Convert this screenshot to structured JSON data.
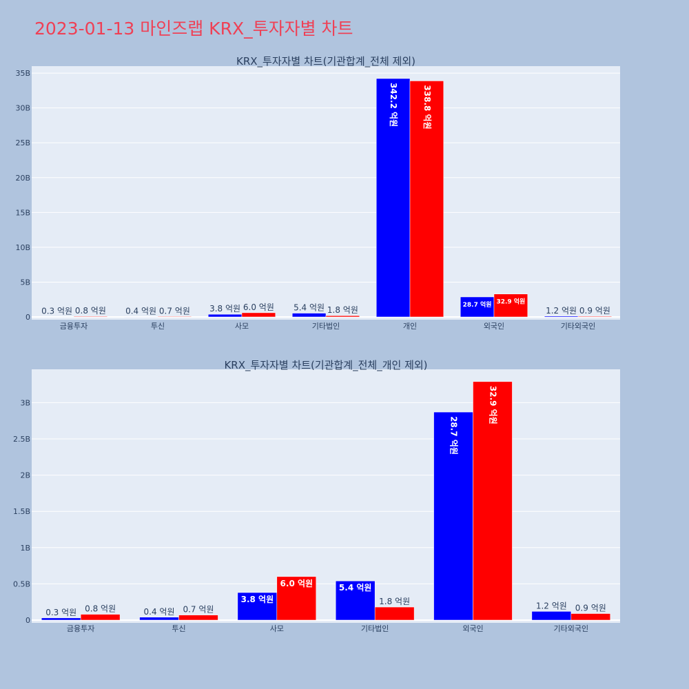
{
  "page": {
    "title": "2023-01-13 마인즈랩 KRX_투자자별 차트"
  },
  "colors": {
    "background": "#b0c4de",
    "plot_bg": "#e5ecf6",
    "title": "#ef4055",
    "buy": "#0000ff",
    "sell": "#ff0000",
    "text": "#2a3f5f"
  },
  "chart_data": [
    {
      "type": "bar",
      "title": "KRX_투자자별 차트(기관합계_전체 제외)",
      "xlabel": "",
      "ylabel": "",
      "categories": [
        "금융투자",
        "투신",
        "사모",
        "기타법인",
        "개인",
        "외국인",
        "기타외국인"
      ],
      "ylim": [
        0,
        36000000000
      ],
      "y_ticks": [
        0,
        5000000000,
        10000000000,
        15000000000,
        20000000000,
        25000000000,
        30000000000,
        35000000000
      ],
      "y_tick_labels": [
        "0",
        "5B",
        "10B",
        "15B",
        "20B",
        "25B",
        "30B",
        "35B"
      ],
      "grid": true,
      "series": [
        {
          "color": "#0000ff",
          "values": [
            30000000,
            40000000,
            380000000,
            540000000,
            34220000000,
            2870000000,
            120000000
          ],
          "labels": [
            "0.3 억원",
            "0.4 억원",
            "3.8 억원",
            "5.4 억원",
            "342.2 억원",
            "28.7 억원",
            "1.2 억원"
          ]
        },
        {
          "color": "#ff0000",
          "values": [
            80000000,
            70000000,
            600000000,
            180000000,
            33880000000,
            3290000000,
            90000000
          ],
          "labels": [
            "0.8 억원",
            "0.7 억원",
            "6.0 억원",
            "1.8 억원",
            "338.8 억원",
            "32.9 억원",
            "0.9 억원"
          ]
        }
      ]
    },
    {
      "type": "bar",
      "title": "KRX_투자자별 차트(기관합계_전체_개인 제외)",
      "xlabel": "",
      "ylabel": "",
      "categories": [
        "금융투자",
        "투신",
        "사모",
        "기타법인",
        "외국인",
        "기타외국인"
      ],
      "ylim": [
        0,
        3460000000
      ],
      "y_ticks": [
        0,
        500000000,
        1000000000,
        1500000000,
        2000000000,
        2500000000,
        3000000000
      ],
      "y_tick_labels": [
        "0",
        "0.5B",
        "1B",
        "1.5B",
        "2B",
        "2.5B",
        "3B"
      ],
      "grid": true,
      "series": [
        {
          "color": "#0000ff",
          "values": [
            30000000,
            40000000,
            380000000,
            540000000,
            2870000000,
            120000000
          ],
          "labels": [
            "0.3 억원",
            "0.4 억원",
            "3.8 억원",
            "5.4 억원",
            "28.7 억원",
            "1.2 억원"
          ]
        },
        {
          "color": "#ff0000",
          "values": [
            80000000,
            70000000,
            600000000,
            180000000,
            3290000000,
            90000000
          ],
          "labels": [
            "0.8 억원",
            "0.7 억원",
            "6.0 억원",
            "1.8 억원",
            "32.9 억원",
            "0.9 억원"
          ]
        }
      ]
    }
  ]
}
